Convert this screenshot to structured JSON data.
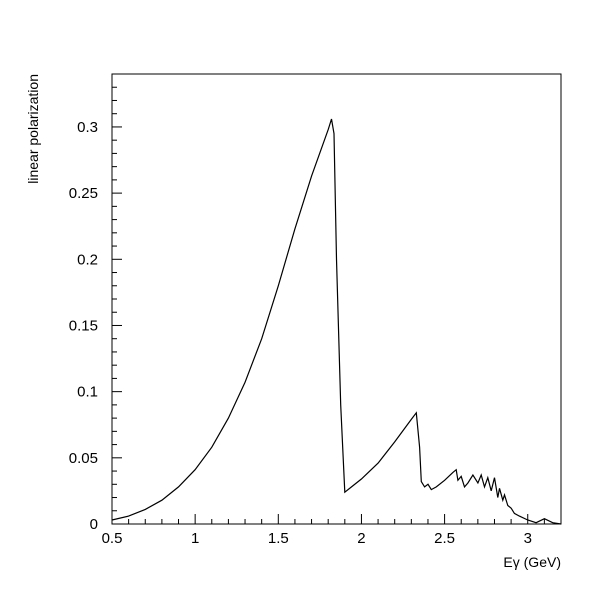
{
  "chart_data": {
    "type": "line",
    "title": "",
    "xlabel": "Eγ (GeV)",
    "ylabel": "linear polarization",
    "xlim": [
      0.5,
      3.2
    ],
    "ylim": [
      0,
      0.34
    ],
    "grid": false,
    "xticks": [
      0.5,
      1,
      1.5,
      2,
      2.5,
      3
    ],
    "xtick_labels": [
      "0.5",
      "1",
      "1.5",
      "2",
      "2.5",
      "3"
    ],
    "yticks": [
      0,
      0.05,
      0.1,
      0.15,
      0.2,
      0.25,
      0.3
    ],
    "ytick_labels": [
      "0",
      "0.05",
      "0.1",
      "0.15",
      "0.2",
      "0.25",
      "0.3"
    ],
    "series": [
      {
        "color": "#000000",
        "x": [
          0.5,
          0.6,
          0.7,
          0.8,
          0.9,
          1.0,
          1.1,
          1.2,
          1.3,
          1.4,
          1.5,
          1.6,
          1.7,
          1.8,
          1.82,
          1.835,
          1.85,
          1.875,
          1.9,
          1.94,
          2.0,
          2.1,
          2.2,
          2.3,
          2.33,
          2.35,
          2.36,
          2.38,
          2.4,
          2.42,
          2.45,
          2.5,
          2.55,
          2.57,
          2.58,
          2.6,
          2.62,
          2.64,
          2.67,
          2.7,
          2.72,
          2.74,
          2.76,
          2.78,
          2.8,
          2.82,
          2.83,
          2.85,
          2.86,
          2.88,
          2.9,
          2.92,
          2.95,
          3.0,
          3.05,
          3.1,
          3.15,
          3.2
        ],
        "y": [
          0.003,
          0.006,
          0.011,
          0.018,
          0.028,
          0.041,
          0.058,
          0.08,
          0.107,
          0.14,
          0.18,
          0.223,
          0.263,
          0.298,
          0.306,
          0.295,
          0.2,
          0.09,
          0.024,
          0.028,
          0.034,
          0.046,
          0.062,
          0.079,
          0.084,
          0.058,
          0.032,
          0.028,
          0.03,
          0.026,
          0.028,
          0.033,
          0.039,
          0.041,
          0.033,
          0.036,
          0.028,
          0.031,
          0.037,
          0.031,
          0.037,
          0.028,
          0.035,
          0.025,
          0.035,
          0.02,
          0.027,
          0.018,
          0.022,
          0.014,
          0.012,
          0.008,
          0.006,
          0.003,
          0.001,
          0.004,
          0.001,
          0.0
        ]
      }
    ]
  }
}
